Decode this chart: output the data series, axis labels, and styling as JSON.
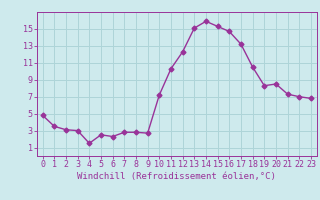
{
  "x": [
    0,
    1,
    2,
    3,
    4,
    5,
    6,
    7,
    8,
    9,
    10,
    11,
    12,
    13,
    14,
    15,
    16,
    17,
    18,
    19,
    20,
    21,
    22,
    23
  ],
  "y": [
    4.8,
    3.5,
    3.1,
    3.0,
    1.5,
    2.5,
    2.3,
    2.8,
    2.8,
    2.7,
    7.2,
    10.3,
    12.3,
    15.1,
    15.9,
    15.3,
    14.7,
    13.2,
    10.5,
    8.3,
    8.5,
    7.3,
    7.0,
    6.8
  ],
  "line_color": "#993399",
  "marker": "D",
  "marker_size": 2.5,
  "bg_color": "#ceeaed",
  "grid_color": "#aed4d8",
  "tick_color": "#993399",
  "label_color": "#993399",
  "xlabel": "Windchill (Refroidissement éolien,°C)",
  "xlabel_fontsize": 6.5,
  "xlim": [
    -0.5,
    23.5
  ],
  "ylim": [
    0,
    17
  ],
  "yticks": [
    1,
    3,
    5,
    7,
    9,
    11,
    13,
    15
  ],
  "xticks": [
    0,
    1,
    2,
    3,
    4,
    5,
    6,
    7,
    8,
    9,
    10,
    11,
    12,
    13,
    14,
    15,
    16,
    17,
    18,
    19,
    20,
    21,
    22,
    23
  ],
  "tick_fontsize": 6.0,
  "linewidth": 1.0
}
